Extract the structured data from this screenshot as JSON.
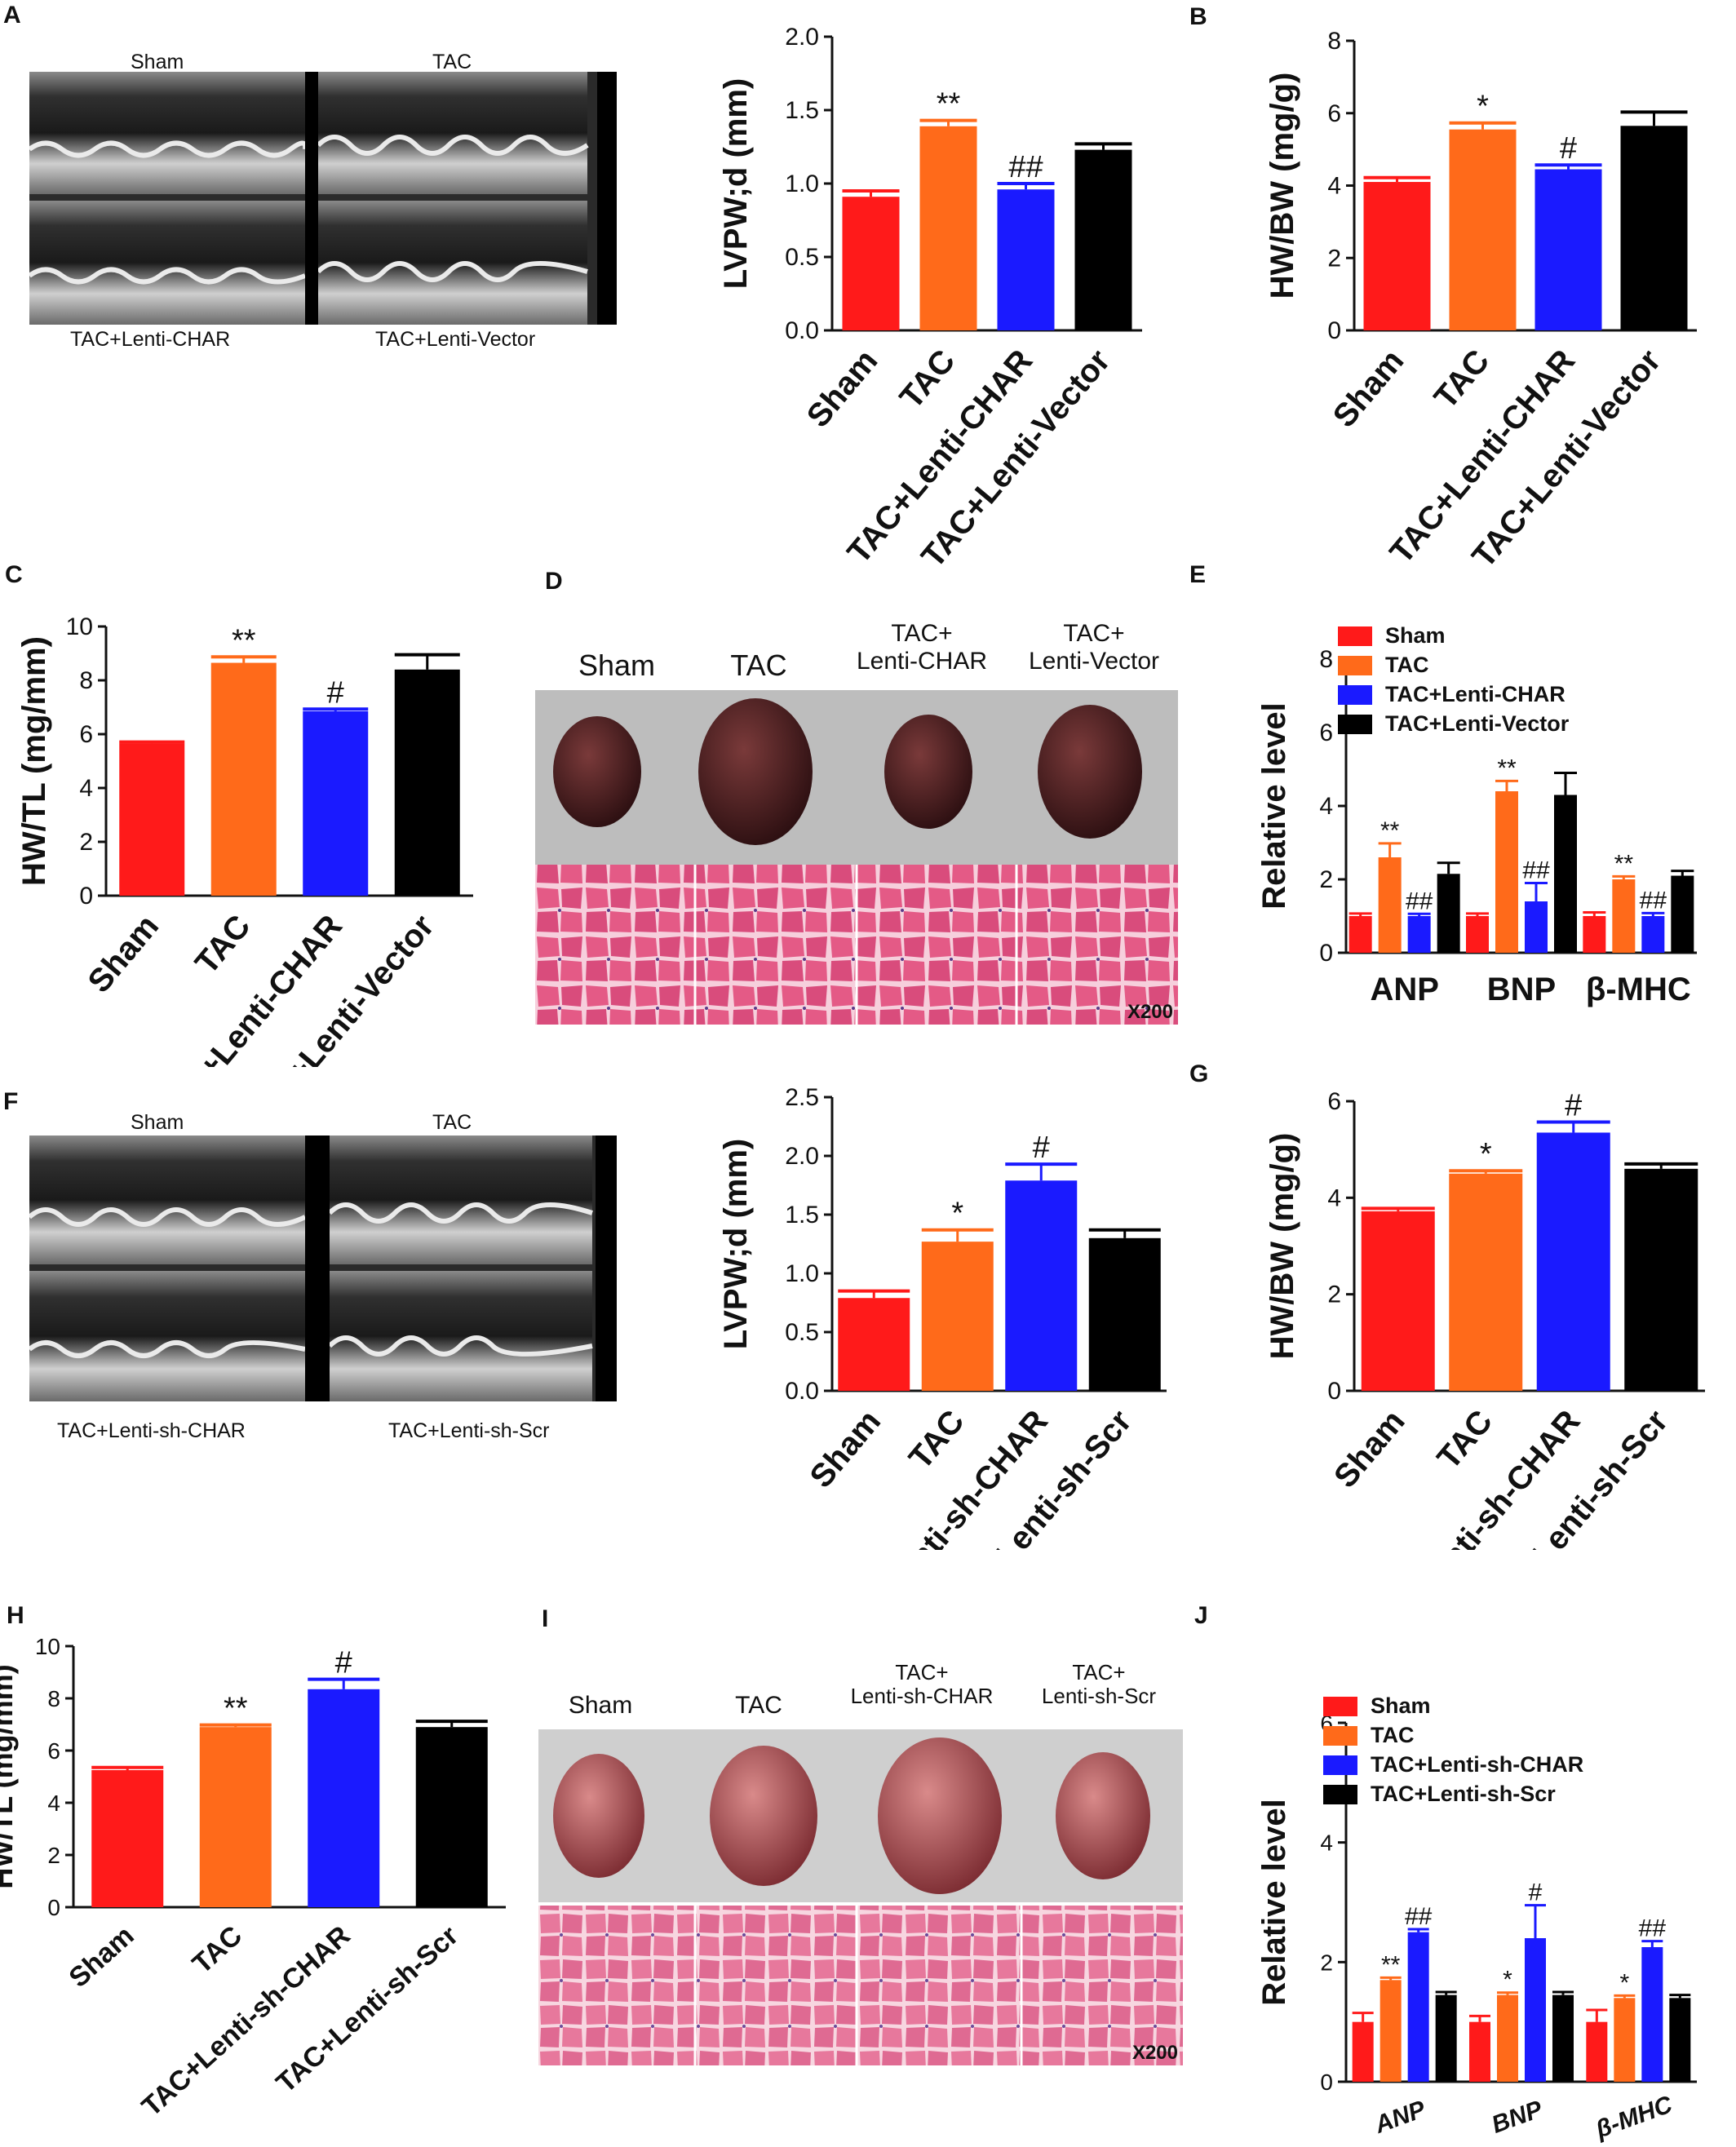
{
  "colors": {
    "sham": "#ff1a1a",
    "tac": "#ff6a1a",
    "tac_lenti": "#1a1aff",
    "tac_vector": "#000000",
    "heart_tissue": "#e8799c",
    "background": "#ffffff"
  },
  "panels": {
    "A": {
      "letter": "A",
      "echo_labels": [
        "Sham",
        "TAC",
        "TAC+Lenti-CHAR",
        "TAC+Lenti-Vector"
      ]
    },
    "D": {
      "letter": "D",
      "photo_labels": [
        "Sham",
        "TAC",
        "TAC+\nLenti-CHAR",
        "TAC+\nLenti-Vector"
      ],
      "magnification": "X200"
    },
    "F": {
      "letter": "F",
      "echo_labels": [
        "Sham",
        "TAC",
        "TAC+Lenti-sh-CHAR",
        "TAC+Lenti-sh-Scr"
      ]
    },
    "I": {
      "letter": "I",
      "photo_labels": [
        "Sham",
        "TAC",
        "TAC+\nLenti-sh-CHAR",
        "TAC+\nLenti-sh-Scr"
      ],
      "magnification": "X200"
    }
  },
  "chart_data": [
    {
      "id": "A-chart",
      "letter": "",
      "type": "bar",
      "ylabel": "LVPW;d (mm)",
      "ylim": [
        0,
        2.0
      ],
      "yticks": [
        "0.0",
        "0.5",
        "1.0",
        "1.5",
        "2.0"
      ],
      "categories": [
        "Sham",
        "TAC",
        "TAC+Lenti-CHAR",
        "TAC+Lenti-Vector"
      ],
      "values": [
        0.91,
        1.39,
        0.96,
        1.23
      ],
      "errors": [
        0.04,
        0.04,
        0.04,
        0.04
      ],
      "annotations": [
        "",
        "**",
        "##",
        ""
      ]
    },
    {
      "id": "B-chart",
      "letter": "B",
      "type": "bar",
      "ylabel": "HW/BW (mg/g)",
      "ylim": [
        0,
        8
      ],
      "yticks": [
        "0",
        "2",
        "4",
        "6",
        "8"
      ],
      "categories": [
        "Sham",
        "TAC",
        "TAC+Lenti-CHAR",
        "TAC+Lenti-Vector"
      ],
      "values": [
        4.1,
        5.55,
        4.45,
        5.65
      ],
      "errors": [
        0.12,
        0.18,
        0.12,
        0.38
      ],
      "annotations": [
        "",
        "*",
        "#",
        ""
      ]
    },
    {
      "id": "C-chart",
      "letter": "C",
      "type": "bar",
      "ylabel": "HW/TL (mg/mm)",
      "ylim": [
        0,
        10
      ],
      "yticks": [
        "0",
        "2",
        "4",
        "6",
        "8",
        "10"
      ],
      "categories": [
        "Sham",
        "TAC",
        "TAC+Lenti-CHAR",
        "TAC+Lenti-Vector"
      ],
      "values": [
        5.65,
        8.65,
        6.85,
        8.4
      ],
      "errors": [
        0.06,
        0.22,
        0.08,
        0.55
      ],
      "annotations": [
        "",
        "**",
        "#",
        ""
      ]
    },
    {
      "id": "E-chart",
      "letter": "E",
      "type": "bar",
      "ylabel": "Relative level",
      "ylim": [
        0,
        8
      ],
      "yticks": [
        "0",
        "2",
        "4",
        "6",
        "8"
      ],
      "categories": [
        "ANP",
        "BNP",
        "β-MHC"
      ],
      "series": [
        {
          "name": "Sham",
          "values": [
            1.0,
            1.0,
            1.0
          ],
          "errors": [
            0.07,
            0.07,
            0.1
          ],
          "annotations": [
            "",
            "",
            ""
          ]
        },
        {
          "name": "TAC",
          "values": [
            2.6,
            4.4,
            2.0
          ],
          "errors": [
            0.38,
            0.28,
            0.08
          ],
          "annotations": [
            "**",
            "**",
            "**"
          ]
        },
        {
          "name": "TAC+Lenti-CHAR",
          "values": [
            1.0,
            1.4,
            1.0
          ],
          "errors": [
            0.06,
            0.5,
            0.08
          ],
          "annotations": [
            "##",
            "##",
            "##"
          ]
        },
        {
          "name": "TAC+Lenti-Vector",
          "values": [
            2.15,
            4.3,
            2.1
          ],
          "errors": [
            0.3,
            0.6,
            0.13
          ],
          "annotations": [
            "",
            "",
            ""
          ]
        }
      ]
    },
    {
      "id": "F-chart",
      "letter": "",
      "type": "bar",
      "ylabel": "LVPW;d (mm)",
      "ylim": [
        0,
        2.5
      ],
      "yticks": [
        "0.0",
        "0.5",
        "1.0",
        "1.5",
        "2.0",
        "2.5"
      ],
      "categories": [
        "Sham",
        "TAC",
        "TAC+Lenti-sh-CHAR",
        "TAC+Lenti-sh-Scr"
      ],
      "values": [
        0.79,
        1.27,
        1.79,
        1.3
      ],
      "errors": [
        0.06,
        0.1,
        0.14,
        0.07
      ],
      "annotations": [
        "",
        "*",
        "#",
        ""
      ]
    },
    {
      "id": "G-chart",
      "letter": "G",
      "type": "bar",
      "ylabel": "HW/BW (mg/g)",
      "ylim": [
        0,
        6
      ],
      "yticks": [
        "0",
        "2",
        "4",
        "6"
      ],
      "categories": [
        "Sham",
        "TAC",
        "TAC+Lenti-sh-CHAR",
        "TAC+Lenti-sh-Scr"
      ],
      "values": [
        3.72,
        4.5,
        5.35,
        4.6
      ],
      "errors": [
        0.06,
        0.06,
        0.22,
        0.1
      ],
      "annotations": [
        "",
        "*",
        "#",
        ""
      ]
    },
    {
      "id": "H-chart",
      "letter": "H",
      "type": "bar",
      "ylabel": "HW/TL (mg/mm)",
      "ylim": [
        0,
        10
      ],
      "yticks": [
        "0",
        "2",
        "4",
        "6",
        "8",
        "10"
      ],
      "categories": [
        "Sham",
        "TAC",
        "TAC+Lenti-sh-CHAR",
        "TAC+Lenti-sh-Scr"
      ],
      "values": [
        5.25,
        6.9,
        8.35,
        6.9
      ],
      "errors": [
        0.1,
        0.08,
        0.38,
        0.22
      ],
      "annotations": [
        "",
        "**",
        "#",
        ""
      ]
    },
    {
      "id": "J-chart",
      "letter": "J",
      "type": "bar",
      "ylabel": "Relative level",
      "ylim": [
        0,
        6
      ],
      "yticks": [
        "0",
        "2",
        "4",
        "6"
      ],
      "categories": [
        "ANP",
        "BNP",
        "β-MHC"
      ],
      "series": [
        {
          "name": "Sham",
          "values": [
            1.0,
            1.0,
            1.0
          ],
          "errors": [
            0.15,
            0.1,
            0.2
          ],
          "annotations": [
            "",
            "",
            ""
          ]
        },
        {
          "name": "TAC",
          "values": [
            1.7,
            1.45,
            1.4
          ],
          "errors": [
            0.04,
            0.04,
            0.04
          ],
          "annotations": [
            "**",
            "*",
            "*"
          ]
        },
        {
          "name": "TAC+Lenti-sh-CHAR",
          "values": [
            2.5,
            2.4,
            2.25
          ],
          "errors": [
            0.05,
            0.55,
            0.1
          ],
          "annotations": [
            "##",
            "#",
            "##"
          ]
        },
        {
          "name": "TAC+Lenti-sh-Scr",
          "values": [
            1.45,
            1.45,
            1.4
          ],
          "errors": [
            0.05,
            0.05,
            0.05
          ],
          "annotations": [
            "",
            "",
            ""
          ]
        }
      ]
    }
  ]
}
